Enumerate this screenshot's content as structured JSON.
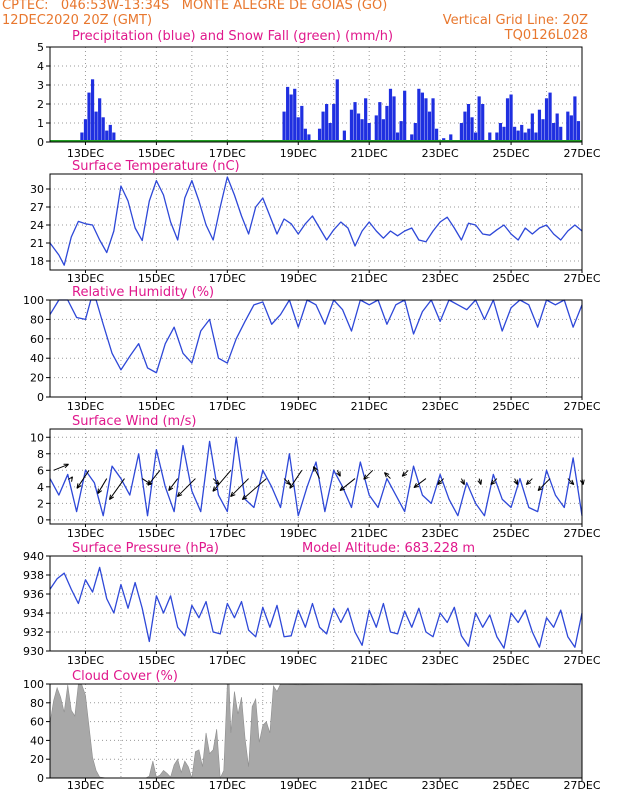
{
  "header": {
    "line1": "CPTEC:   046:53W-13:34S   MONTE ALEGRE DE GOIAS (GO)",
    "line2_left": "12DEC2020 20Z (GMT)",
    "line2_right": "Vertical Grid Line: 20Z",
    "line3_right": "TQ0126L028"
  },
  "colors": {
    "header": "#e8772e",
    "title": "#e0188c",
    "precip": "#1f2fe0",
    "snow": "#22a022",
    "line": "#2e48d8",
    "cloud": "#a8a8a8"
  },
  "x_labels": [
    "13DEC",
    "15DEC",
    "17DEC",
    "19DEC",
    "21DEC",
    "23DEC",
    "25DEC",
    "27DEC"
  ],
  "chart_data": [
    {
      "type": "bar",
      "title": "Precipitation (blue) and Snow Fall (green) (mm/h)",
      "ylim": [
        0,
        5
      ],
      "yticks": [
        "0",
        "1",
        "2",
        "3",
        "4",
        "5"
      ],
      "x": [
        12.9,
        13.0,
        13.1,
        13.2,
        13.3,
        13.4,
        13.5,
        13.6,
        13.7,
        13.8,
        18.6,
        18.7,
        18.8,
        18.9,
        19.0,
        19.1,
        19.2,
        19.3,
        19.6,
        19.7,
        19.8,
        19.9,
        20.0,
        20.1,
        20.3,
        20.5,
        20.6,
        20.7,
        20.8,
        20.9,
        21.0,
        21.2,
        21.3,
        21.4,
        21.5,
        21.6,
        21.7,
        21.8,
        21.9,
        22.0,
        22.2,
        22.3,
        22.4,
        22.5,
        22.6,
        22.7,
        22.8,
        22.9,
        23.1,
        23.3,
        23.6,
        23.7,
        23.8,
        23.9,
        24.0,
        24.1,
        24.2,
        24.4,
        24.6,
        24.7,
        24.8,
        24.9,
        25.0,
        25.1,
        25.2,
        25.3,
        25.4,
        25.5,
        25.6,
        25.7,
        25.8,
        25.9,
        26.0,
        26.1,
        26.2,
        26.3,
        26.4,
        26.6,
        26.7,
        26.8,
        26.9
      ],
      "values": [
        0.5,
        1.2,
        2.6,
        3.3,
        1.6,
        2.3,
        1.3,
        0.6,
        0.9,
        0.5,
        1.6,
        2.9,
        2.5,
        2.8,
        1.3,
        1.9,
        0.7,
        0.4,
        0.7,
        1.6,
        2.0,
        1.0,
        2.0,
        3.3,
        0.6,
        1.7,
        2.1,
        1.5,
        1.2,
        2.3,
        1.0,
        1.4,
        2.1,
        1.2,
        1.9,
        2.8,
        2.4,
        0.5,
        1.1,
        2.7,
        0.4,
        1.0,
        2.8,
        2.6,
        2.3,
        1.6,
        2.3,
        0.7,
        0.2,
        0.4,
        1.0,
        1.6,
        2.0,
        1.3,
        0.5,
        2.4,
        2.0,
        0.5,
        0.5,
        1.0,
        0.8,
        2.3,
        2.5,
        0.8,
        0.6,
        0.9,
        0.5,
        0.7,
        1.5,
        0.5,
        1.7,
        1.2,
        2.3,
        2.6,
        1.0,
        1.5,
        0.8,
        1.6,
        1.4,
        2.4,
        1.1
      ],
      "snow": 0
    },
    {
      "type": "line",
      "title": "Surface Temperature (nC)",
      "ylim": [
        16.5,
        32.5
      ],
      "yticks": [
        "18",
        "21",
        "24",
        "27",
        "30"
      ],
      "ytick_values": [
        18,
        21,
        24,
        27,
        30
      ],
      "x": [
        12.0,
        12.25,
        12.4,
        12.6,
        12.8,
        13.0,
        13.2,
        13.4,
        13.6,
        13.8,
        14.0,
        14.2,
        14.4,
        14.6,
        14.8,
        15.0,
        15.2,
        15.4,
        15.6,
        15.8,
        16.0,
        16.2,
        16.4,
        16.6,
        16.8,
        17.0,
        17.2,
        17.4,
        17.6,
        17.8,
        18.0,
        18.2,
        18.4,
        18.6,
        18.8,
        19.0,
        19.2,
        19.4,
        19.6,
        19.8,
        20.0,
        20.2,
        20.4,
        20.6,
        20.8,
        21.0,
        21.2,
        21.4,
        21.6,
        21.8,
        22.0,
        22.2,
        22.4,
        22.6,
        22.8,
        23.0,
        23.2,
        23.4,
        23.6,
        23.8,
        24.0,
        24.2,
        24.4,
        24.6,
        24.8,
        25.0,
        25.2,
        25.4,
        25.6,
        25.8,
        26.0,
        26.2,
        26.4,
        26.6,
        26.8,
        27.0
      ],
      "values": [
        21,
        19,
        17.3,
        22,
        24.6,
        24.2,
        24,
        21.5,
        19.4,
        23,
        30.5,
        28,
        23.5,
        21.4,
        28,
        31.4,
        29,
        24.5,
        21.5,
        28.5,
        31.4,
        28,
        24,
        21.5,
        27,
        32,
        29,
        25.5,
        22.5,
        27,
        28.5,
        25.5,
        22.5,
        25,
        24.2,
        22.5,
        24.2,
        25.5,
        23.5,
        21.5,
        23.2,
        24.5,
        23.5,
        20.5,
        23,
        24.5,
        23,
        21.8,
        23,
        22.2,
        23,
        23.5,
        21.5,
        21.2,
        23,
        24.5,
        25.3,
        23.5,
        21.5,
        24.3,
        24,
        22.5,
        22.3,
        23.2,
        24,
        22.5,
        21.5,
        23.5,
        22.5,
        23.5,
        24,
        22.5,
        21.5,
        23,
        24,
        23
      ]
    },
    {
      "type": "line",
      "title": "Relative Humidity (%)",
      "ylim": [
        0,
        100
      ],
      "yticks": [
        "0",
        "20",
        "40",
        "60",
        "80",
        "100"
      ],
      "ytick_values": [
        0,
        20,
        40,
        60,
        80,
        100
      ],
      "x": [
        12.0,
        12.25,
        12.5,
        12.75,
        13.0,
        13.15,
        13.3,
        13.5,
        13.75,
        14.0,
        14.25,
        14.5,
        14.75,
        15.0,
        15.25,
        15.5,
        15.75,
        16.0,
        16.25,
        16.5,
        16.75,
        17.0,
        17.25,
        17.5,
        17.75,
        18.0,
        18.25,
        18.5,
        18.75,
        19.0,
        19.25,
        19.5,
        19.75,
        20.0,
        20.25,
        20.5,
        20.75,
        21.0,
        21.25,
        21.5,
        21.75,
        22.0,
        22.25,
        22.5,
        22.75,
        23.0,
        23.25,
        23.5,
        23.75,
        24.0,
        24.25,
        24.5,
        24.75,
        25.0,
        25.25,
        25.5,
        25.75,
        26.0,
        26.25,
        26.5,
        26.75,
        27.0
      ],
      "values": [
        85,
        100,
        100,
        82,
        80,
        100,
        100,
        75,
        45,
        28,
        42,
        55,
        30,
        25,
        55,
        72,
        45,
        35,
        68,
        80,
        40,
        35,
        60,
        78,
        95,
        98,
        75,
        85,
        100,
        72,
        100,
        95,
        75,
        100,
        90,
        68,
        100,
        95,
        100,
        75,
        95,
        100,
        65,
        88,
        100,
        78,
        100,
        95,
        90,
        100,
        80,
        100,
        68,
        92,
        100,
        95,
        72,
        100,
        95,
        100,
        72,
        95
      ]
    },
    {
      "type": "line",
      "title": "Surface Wind (m/s)",
      "ylim": [
        -0.5,
        11
      ],
      "yticks": [
        "0",
        "2",
        "4",
        "6",
        "8",
        "10"
      ],
      "ytick_values": [
        0,
        2,
        4,
        6,
        8,
        10
      ],
      "x": [
        12.0,
        12.25,
        12.5,
        12.75,
        13.0,
        13.25,
        13.5,
        13.75,
        14.0,
        14.25,
        14.5,
        14.75,
        15.0,
        15.25,
        15.5,
        15.75,
        16.0,
        16.25,
        16.5,
        16.75,
        17.0,
        17.25,
        17.5,
        17.75,
        18.0,
        18.25,
        18.5,
        18.75,
        19.0,
        19.25,
        19.5,
        19.75,
        20.0,
        20.25,
        20.5,
        20.75,
        21.0,
        21.25,
        21.5,
        21.75,
        22.0,
        22.25,
        22.5,
        22.75,
        23.0,
        23.25,
        23.5,
        23.75,
        24.0,
        24.25,
        24.5,
        24.75,
        25.0,
        25.25,
        25.5,
        25.75,
        26.0,
        26.25,
        26.5,
        26.75,
        27.0
      ],
      "values": [
        5,
        3,
        5.5,
        1,
        6,
        4.5,
        0.5,
        6.5,
        5,
        3,
        8,
        0.5,
        8.5,
        4,
        1,
        9,
        3.5,
        1,
        9.5,
        3,
        1,
        10,
        2.5,
        1.5,
        6,
        4,
        1.5,
        8,
        0.5,
        4,
        7,
        1,
        6,
        4,
        1.5,
        7,
        3,
        1.5,
        5,
        3,
        1,
        6.5,
        3,
        2,
        5.5,
        2.5,
        0.5,
        4.5,
        2,
        0.5,
        5.5,
        2.5,
        1.5,
        5,
        1.5,
        1,
        6,
        3,
        1.5,
        7.5,
        0.5
      ],
      "arrow_x": [
        12.1,
        12.6,
        13.1,
        13.6,
        14.1,
        14.6,
        15.1,
        15.6,
        16.1,
        16.6,
        17.1,
        17.6,
        18.1,
        18.6,
        19.1,
        19.6,
        20.1,
        20.6,
        21.1,
        21.6,
        22.1,
        22.6,
        23.1,
        23.6,
        24.1,
        24.6,
        25.1,
        25.6,
        26.1,
        26.6,
        27.0
      ],
      "arrow_y": [
        6,
        5,
        6,
        5,
        5,
        5,
        6,
        5,
        5,
        5,
        6,
        5,
        5,
        5,
        6,
        5,
        6,
        5,
        6,
        5,
        6,
        5,
        5,
        5,
        5,
        5,
        5,
        5,
        5,
        5,
        5
      ],
      "arrow_u": [
        2.5,
        0.2,
        -2,
        -1.5,
        -2.5,
        1.5,
        -2,
        -1.5,
        -3,
        1,
        -3,
        -3,
        -4,
        1,
        -2,
        -1,
        0.5,
        -2.5,
        -1.5,
        -1,
        -1,
        -2,
        -1,
        0.5,
        0.3,
        -1,
        0.5,
        -1,
        -2,
        1,
        0.2
      ],
      "arrow_v": [
        1,
        0.3,
        -3,
        -2.5,
        -3.5,
        -1,
        -2.5,
        -2,
        -3,
        -1,
        -3.5,
        -3,
        -3.5,
        -1,
        -3,
        2,
        -1,
        -2,
        -1.5,
        1,
        -1,
        -1.5,
        -1,
        -1,
        -1,
        -1,
        -1,
        -1,
        -2,
        -1,
        -1
      ]
    },
    {
      "type": "line",
      "title": "Surface Pressure (hPa)",
      "annotation": "Model Altitude: 683.228  m",
      "ylim": [
        930,
        940
      ],
      "yticks": [
        "930",
        "932",
        "934",
        "936",
        "938",
        "940"
      ],
      "ytick_values": [
        930,
        932,
        934,
        936,
        938,
        940
      ],
      "x": [
        12.0,
        12.2,
        12.4,
        12.6,
        12.8,
        13.0,
        13.2,
        13.4,
        13.6,
        13.8,
        14.0,
        14.2,
        14.4,
        14.6,
        14.8,
        15.0,
        15.2,
        15.4,
        15.6,
        15.8,
        16.0,
        16.2,
        16.4,
        16.6,
        16.8,
        17.0,
        17.2,
        17.4,
        17.6,
        17.8,
        18.0,
        18.2,
        18.4,
        18.6,
        18.8,
        19.0,
        19.2,
        19.4,
        19.6,
        19.8,
        20.0,
        20.2,
        20.4,
        20.6,
        20.8,
        21.0,
        21.2,
        21.4,
        21.6,
        21.8,
        22.0,
        22.2,
        22.4,
        22.6,
        22.8,
        23.0,
        23.2,
        23.4,
        23.6,
        23.8,
        24.0,
        24.2,
        24.4,
        24.6,
        24.8,
        25.0,
        25.2,
        25.4,
        25.6,
        25.8,
        26.0,
        26.2,
        26.4,
        26.6,
        26.8,
        27.0
      ],
      "values": [
        936.5,
        937.6,
        938.2,
        936.5,
        935,
        937.5,
        936.2,
        938.8,
        935.5,
        934,
        937,
        934.5,
        937.2,
        934.5,
        931,
        935.8,
        934,
        935.8,
        932.5,
        931.6,
        934.8,
        933.5,
        935.2,
        932,
        931.8,
        935,
        933.5,
        935.2,
        932.2,
        931.5,
        934.6,
        932.5,
        934.8,
        931.5,
        931.6,
        934.3,
        932.5,
        935,
        932.5,
        931.8,
        934.5,
        933,
        934.5,
        932,
        930.6,
        934.3,
        932.5,
        935,
        932,
        931.8,
        934.2,
        932.5,
        934.5,
        932,
        931.5,
        934,
        933,
        934.6,
        931.6,
        930.5,
        934,
        932.5,
        933.8,
        931.5,
        930.3,
        934,
        933,
        934.3,
        932,
        930.4,
        933.5,
        932.5,
        934.3,
        931.5,
        930.4,
        934
      ]
    },
    {
      "type": "area",
      "title": "Cloud Cover (%)",
      "ylim": [
        0,
        100
      ],
      "yticks": [
        "0",
        "20",
        "40",
        "60",
        "80",
        "100"
      ],
      "ytick_values": [
        0,
        20,
        40,
        60,
        80,
        100
      ],
      "x": [
        12.0,
        12.1,
        12.2,
        12.3,
        12.4,
        12.5,
        12.6,
        12.7,
        12.8,
        12.9,
        13.0,
        13.2,
        13.3,
        13.4,
        13.6,
        13.8,
        14.0,
        14.1,
        14.2,
        14.3,
        14.4,
        14.5,
        14.6,
        14.7,
        14.8,
        14.9,
        15.0,
        15.1,
        15.2,
        15.3,
        15.4,
        15.5,
        15.6,
        15.7,
        15.8,
        15.9,
        16.0,
        16.1,
        16.2,
        16.3,
        16.4,
        16.5,
        16.6,
        16.7,
        16.8,
        16.9,
        17.0,
        17.05,
        17.1,
        17.2,
        17.3,
        17.4,
        17.5,
        17.6,
        17.7,
        17.8,
        17.9,
        18.0,
        18.1,
        18.2,
        18.3,
        18.4,
        18.5,
        18.6,
        19.0,
        20.0,
        21.0,
        22.0,
        23.0,
        24.0,
        25.0,
        26.0,
        27.0
      ],
      "values": [
        58,
        82,
        96,
        86,
        70,
        99,
        72,
        66,
        100,
        99,
        88,
        22,
        8,
        1,
        0,
        0,
        0,
        0,
        0,
        0,
        0,
        0,
        0,
        0,
        2,
        18,
        1,
        3,
        8,
        5,
        1,
        14,
        20,
        6,
        18,
        12,
        0,
        28,
        30,
        12,
        48,
        26,
        30,
        52,
        0,
        8,
        100,
        100,
        48,
        92,
        68,
        86,
        42,
        12,
        76,
        84,
        38,
        56,
        60,
        48,
        98,
        92,
        100,
        100,
        99,
        100,
        99,
        100,
        99,
        100,
        99,
        100,
        99
      ]
    }
  ]
}
